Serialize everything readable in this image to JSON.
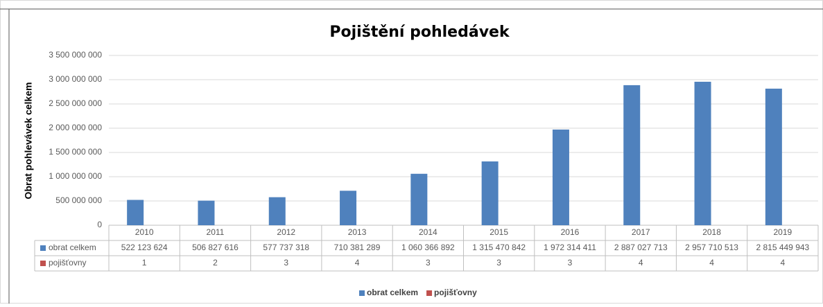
{
  "chart_data": {
    "type": "bar",
    "title": "Pojištění pohledávek",
    "y_label": "Obrat pohlevávek celkem",
    "categories": [
      "2010",
      "2011",
      "2012",
      "2013",
      "2014",
      "2015",
      "2016",
      "2017",
      "2018",
      "2019"
    ],
    "series": [
      {
        "name": "obrat celkem",
        "color": "#4f81bd",
        "values": [
          522123624,
          506827616,
          577737318,
          710381289,
          1060366892,
          1315470842,
          1972314411,
          2887027713,
          2957710513,
          2815449943
        ],
        "value_labels": [
          "522 123 624",
          "506 827 616",
          "577 737 318",
          "710 381 289",
          "1 060 366 892",
          "1 315 470 842",
          "1 972 314 411",
          "2 887 027 713",
          "2 957 710 513",
          "2 815 449 943"
        ]
      },
      {
        "name": "pojišťovny",
        "color": "#c0504d",
        "values": [
          1,
          2,
          3,
          4,
          3,
          3,
          3,
          4,
          4,
          4
        ]
      }
    ],
    "ylim": [
      0,
      3500000000
    ],
    "yticks": [
      0,
      {
        "value": 500000000,
        "label": "500 000 000"
      },
      {
        "value": 1000000000,
        "label": "1 000 000 000"
      },
      {
        "value": 1500000000,
        "label": "1 500 000 000"
      },
      {
        "value": 2000000000,
        "label": "2 000 000 000"
      },
      {
        "value": 2500000000,
        "label": "2 500 000 000"
      },
      {
        "value": 3000000000,
        "label": "3 000 000 000"
      },
      {
        "value": 3500000000,
        "label": "3 500 000 000"
      }
    ],
    "grid": true
  }
}
